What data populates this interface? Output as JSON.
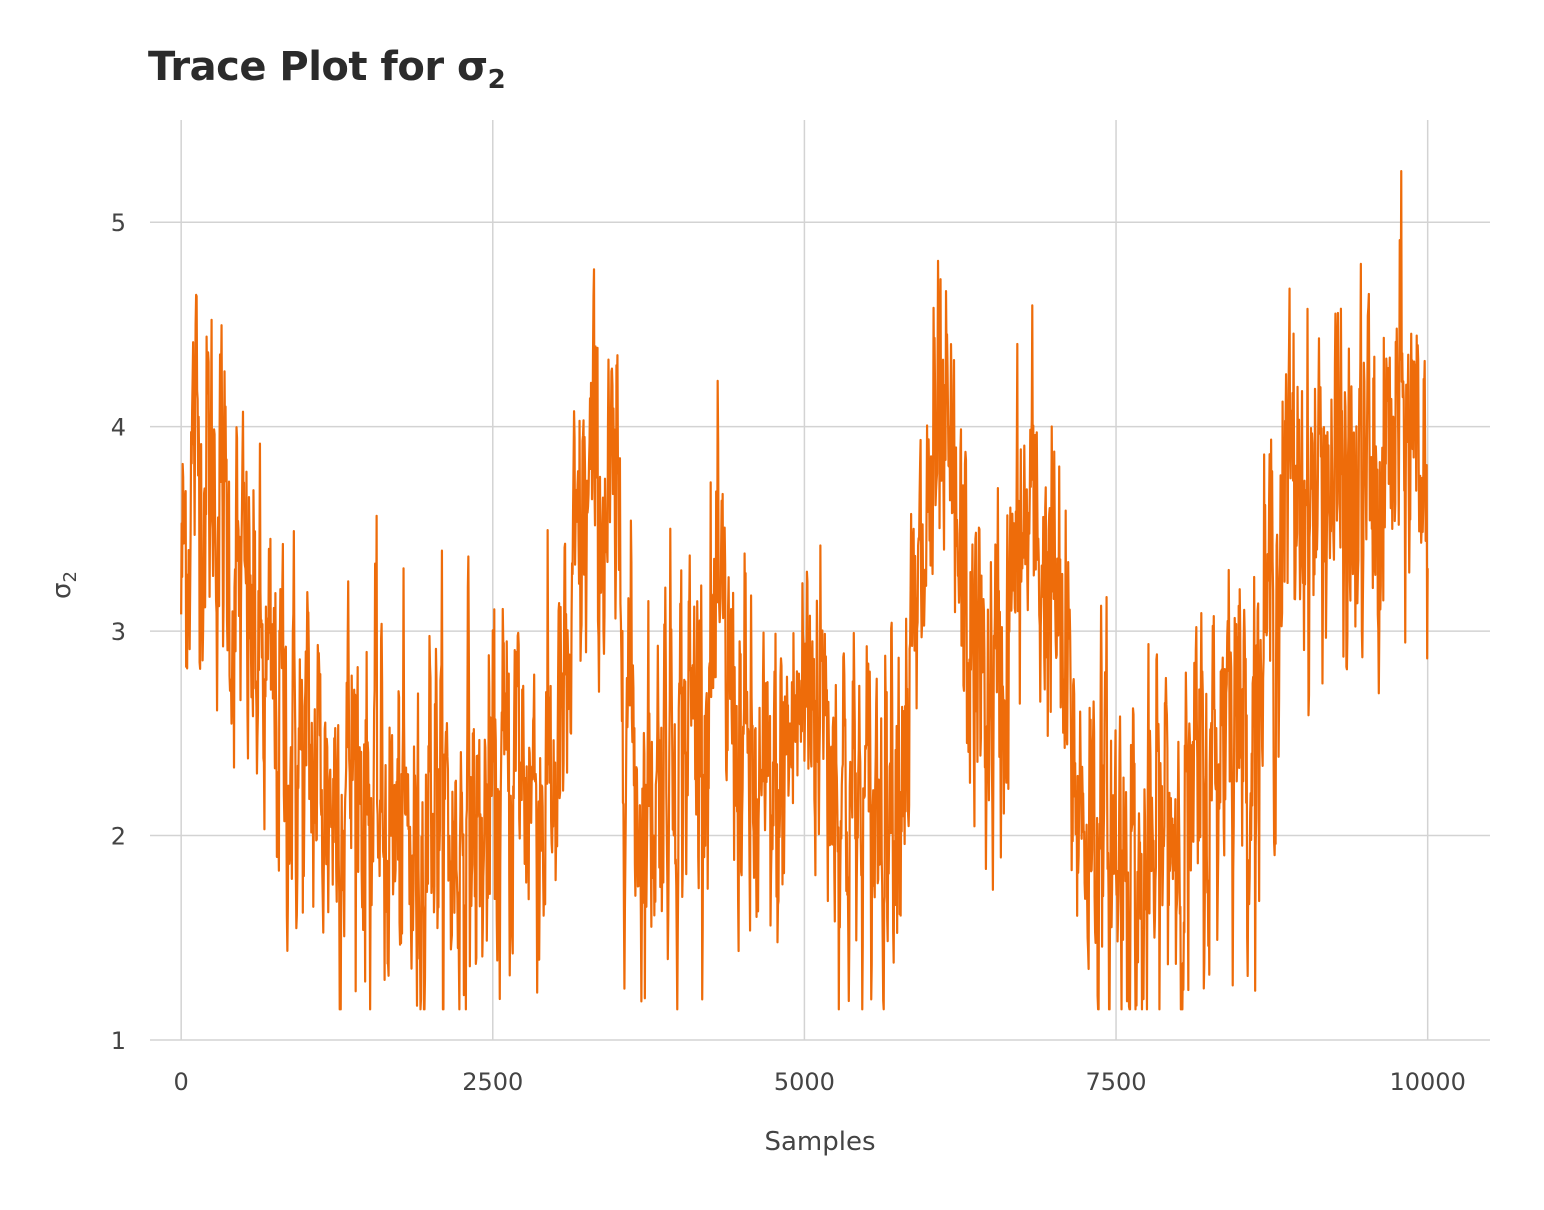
{
  "chart_data": {
    "type": "line",
    "title": "Trace Plot for σ",
    "title_subscript": "2",
    "xlabel": "Samples",
    "ylabel": "σ",
    "ylabel_subscript": "2",
    "xlim": [
      -250,
      10500
    ],
    "ylim": [
      1.0,
      5.5
    ],
    "x_ticks": [
      0,
      2500,
      5000,
      7500,
      10000
    ],
    "x_tick_labels": [
      "0",
      "2500",
      "5000",
      "7500",
      "10000"
    ],
    "y_ticks": [
      1,
      2,
      3,
      4,
      5
    ],
    "y_tick_labels": [
      "1",
      "2",
      "3",
      "4",
      "5"
    ],
    "grid": true,
    "legend": "none",
    "line_color": "#EE6C0A",
    "grid_color": "#d3d3d3",
    "series": [
      {
        "n_samples": 10000,
        "trend_x": [
          0,
          100,
          200,
          300,
          400,
          500,
          600,
          700,
          800,
          900,
          1000,
          1100,
          1200,
          1300,
          1400,
          1500,
          1600,
          1700,
          1800,
          1900,
          2000,
          2100,
          2200,
          2300,
          2400,
          2500,
          2600,
          2700,
          2800,
          2900,
          3000,
          3100,
          3200,
          3300,
          3400,
          3500,
          3600,
          3700,
          3800,
          3900,
          4000,
          4100,
          4200,
          4300,
          4400,
          4500,
          4600,
          4700,
          4800,
          4900,
          5000,
          5100,
          5200,
          5300,
          5400,
          5500,
          5600,
          5700,
          5800,
          5900,
          6000,
          6100,
          6200,
          6300,
          6400,
          6500,
          6600,
          6700,
          6800,
          6900,
          7000,
          7100,
          7200,
          7300,
          7400,
          7500,
          7600,
          7700,
          7800,
          7900,
          8000,
          8100,
          8200,
          8300,
          8400,
          8500,
          8600,
          8700,
          8800,
          8900,
          9000,
          9100,
          9200,
          9300,
          9400,
          9500,
          9600,
          9700,
          9800,
          9900,
          10000
        ],
        "trend_y": [
          3.2,
          3.9,
          3.8,
          3.7,
          3.3,
          3.1,
          2.9,
          2.6,
          2.6,
          2.4,
          2.3,
          2.3,
          2.2,
          2.3,
          2.4,
          2.2,
          2.1,
          2.0,
          1.9,
          1.8,
          2.4,
          2.1,
          1.9,
          2.2,
          1.9,
          2.1,
          2.2,
          2.4,
          2.3,
          2.2,
          2.3,
          2.6,
          3.4,
          3.7,
          3.6,
          3.4,
          2.6,
          2.1,
          2.3,
          2.5,
          2.5,
          2.6,
          2.7,
          2.9,
          2.7,
          2.4,
          2.1,
          2.0,
          2.2,
          2.5,
          2.7,
          2.8,
          2.5,
          2.3,
          2.1,
          2.0,
          2.2,
          2.4,
          2.6,
          2.9,
          3.6,
          3.8,
          3.5,
          3.0,
          2.8,
          2.6,
          2.8,
          3.3,
          3.5,
          3.4,
          3.2,
          2.6,
          2.2,
          2.1,
          2.0,
          1.9,
          2.1,
          1.6,
          1.8,
          2.1,
          2.1,
          2.0,
          2.2,
          2.3,
          2.9,
          2.5,
          2.6,
          2.9,
          3.4,
          3.7,
          3.8,
          3.6,
          3.8,
          3.7,
          3.5,
          3.8,
          3.5,
          3.9,
          3.9,
          4.0,
          3.8
        ]
      }
    ]
  }
}
